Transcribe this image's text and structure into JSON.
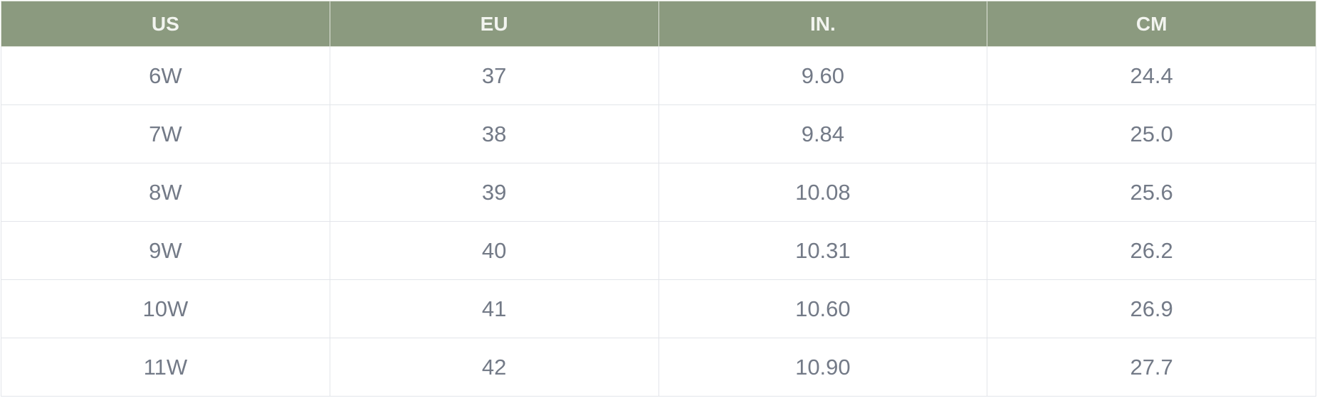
{
  "size_chart": {
    "headers": [
      "US",
      "EU",
      "IN.",
      "CM"
    ],
    "rows": [
      [
        "6W",
        "37",
        "9.60",
        "24.4"
      ],
      [
        "7W",
        "38",
        "9.84",
        "25.0"
      ],
      [
        "8W",
        "39",
        "10.08",
        "25.6"
      ],
      [
        "9W",
        "40",
        "10.31",
        "26.2"
      ],
      [
        "10W",
        "41",
        "10.60",
        "26.9"
      ],
      [
        "11W",
        "42",
        "10.90",
        "27.7"
      ]
    ]
  },
  "colors": {
    "header_background": "#8b9a7f",
    "header_text": "#f2f4ef",
    "cell_text": "#737a87",
    "border": "#e3e5ea"
  }
}
